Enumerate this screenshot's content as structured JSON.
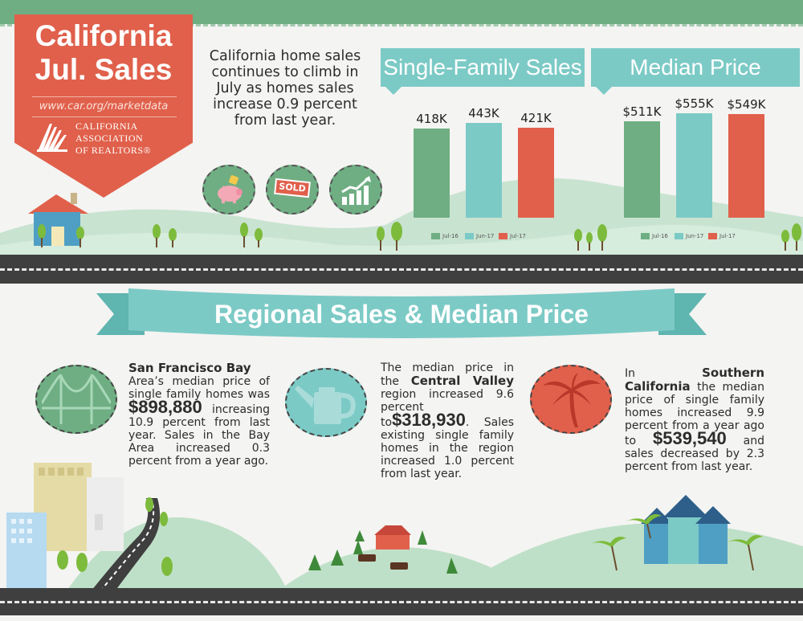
{
  "title": {
    "line1": "California",
    "line2": "Jul. Sales",
    "url": "www.car.org/marketdata"
  },
  "org": {
    "line1": "CALIFORNIA",
    "line2": "ASSOCIATION",
    "line3": "OF REALTORS®"
  },
  "intro": "California home sales continues to climb in July as homes sales increase 0.9 percent from last year.",
  "icons": {
    "sold_label": "SOLD"
  },
  "chart_data": [
    {
      "type": "bar",
      "title": "Single-Family Sales",
      "categories": [
        "Jul-16",
        "Jun-17",
        "Jul-17"
      ],
      "values": [
        418,
        443,
        421
      ],
      "value_labels": [
        "418K",
        "443K",
        "421K"
      ],
      "colors": [
        "#6fae83",
        "#7ccac6",
        "#e0604b"
      ],
      "legend": [
        "Jul-16",
        "Jun-17",
        "Jul-17"
      ],
      "legend_position": "bottom"
    },
    {
      "type": "bar",
      "title": "Median Price",
      "categories": [
        "Jul-16",
        "Jun-17",
        "Jul-17"
      ],
      "values": [
        511,
        555,
        549
      ],
      "value_labels": [
        "$511K",
        "$555K",
        "$549K"
      ],
      "colors": [
        "#6fae83",
        "#7ccac6",
        "#e0604b"
      ],
      "legend": [
        "Jul-16",
        "Jun-17",
        "Jul-17"
      ],
      "legend_position": "bottom"
    }
  ],
  "regional": {
    "heading": "Regional Sales & Median Price",
    "sf": {
      "head": "San Francisco Bay",
      "text1": "Area’s median price of single family homes was",
      "price": "$898,880",
      "text2": "increasing 10.9 percent from last year. Sales in the Bay Area increased 0.3 percent from a year ago."
    },
    "cv": {
      "text1": "The median price in the",
      "head": "Central Valley",
      "text2": "region increased 9.6 percent to",
      "price": "$318,930",
      "text3": ". Sales existing single family homes in the region increased 1.0 percent from last year."
    },
    "sc": {
      "text1": "In",
      "head": "Southern California",
      "text2": "the median price of single family homes increased 9.9 percent from a year ago to",
      "price": "$539,540",
      "text3": "and sales decreased by 2.3 percent from last year."
    }
  },
  "colors": {
    "green": "#6fae83",
    "teal": "#7ccac6",
    "red": "#e0604b",
    "road": "#3f3f3f"
  }
}
